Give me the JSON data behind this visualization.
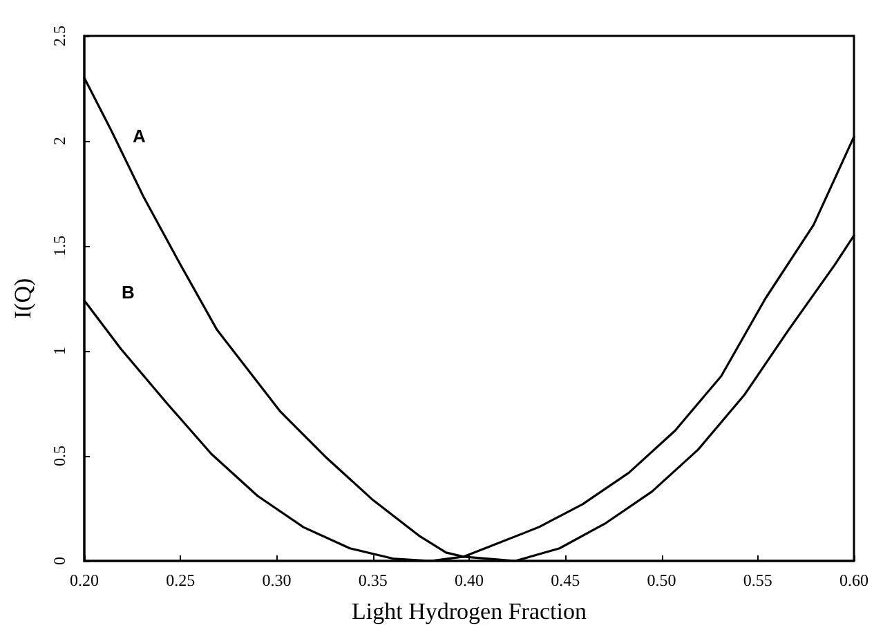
{
  "chart_data": {
    "type": "line",
    "xlabel": "Light Hydrogen Fraction",
    "ylabel": "I(Q)",
    "series": [
      {
        "name": "A",
        "color": "#000000",
        "x": [
          0.2,
          0.214,
          0.231,
          0.25,
          0.269,
          0.302,
          0.326,
          0.35,
          0.374,
          0.388,
          0.397,
          0.411,
          0.436,
          0.459,
          0.483,
          0.507,
          0.531,
          0.554,
          0.579,
          0.6
        ],
        "values": [
          2.3,
          2.05,
          1.73,
          1.41,
          1.1,
          0.71,
          0.49,
          0.29,
          0.12,
          0.04,
          0.02,
          0.07,
          0.16,
          0.27,
          0.42,
          0.62,
          0.88,
          1.25,
          1.6,
          2.02
        ]
      },
      {
        "name": "B",
        "color": "#000000",
        "x": [
          0.2,
          0.219,
          0.243,
          0.266,
          0.29,
          0.314,
          0.338,
          0.361,
          0.38,
          0.397,
          0.424,
          0.447,
          0.471,
          0.495,
          0.519,
          0.543,
          0.566,
          0.59,
          0.6
        ],
        "values": [
          1.24,
          1.01,
          0.75,
          0.51,
          0.31,
          0.16,
          0.06,
          0.01,
          0.0,
          0.02,
          0.0,
          0.06,
          0.18,
          0.33,
          0.53,
          0.79,
          1.1,
          1.41,
          1.55
        ]
      }
    ],
    "xlim": [
      0.2,
      0.6
    ],
    "xticks": [
      {
        "value": 0.2,
        "label": "0.20"
      },
      {
        "value": 0.25,
        "label": "0.25"
      },
      {
        "value": 0.3,
        "label": "0.30"
      },
      {
        "value": 0.35,
        "label": "0.35"
      },
      {
        "value": 0.4,
        "label": "0.40"
      },
      {
        "value": 0.45,
        "label": "0.45"
      },
      {
        "value": 0.5,
        "label": "0.50"
      },
      {
        "value": 0.55,
        "label": "0.55"
      },
      {
        "value": 0.6,
        "label": "0.60"
      }
    ],
    "ylim": [
      0,
      2.5
    ],
    "yticks": [
      0,
      0.5,
      1,
      1.5,
      2,
      2.5
    ],
    "grid": false,
    "legend": false,
    "marker": "none",
    "line_style": "solid"
  }
}
